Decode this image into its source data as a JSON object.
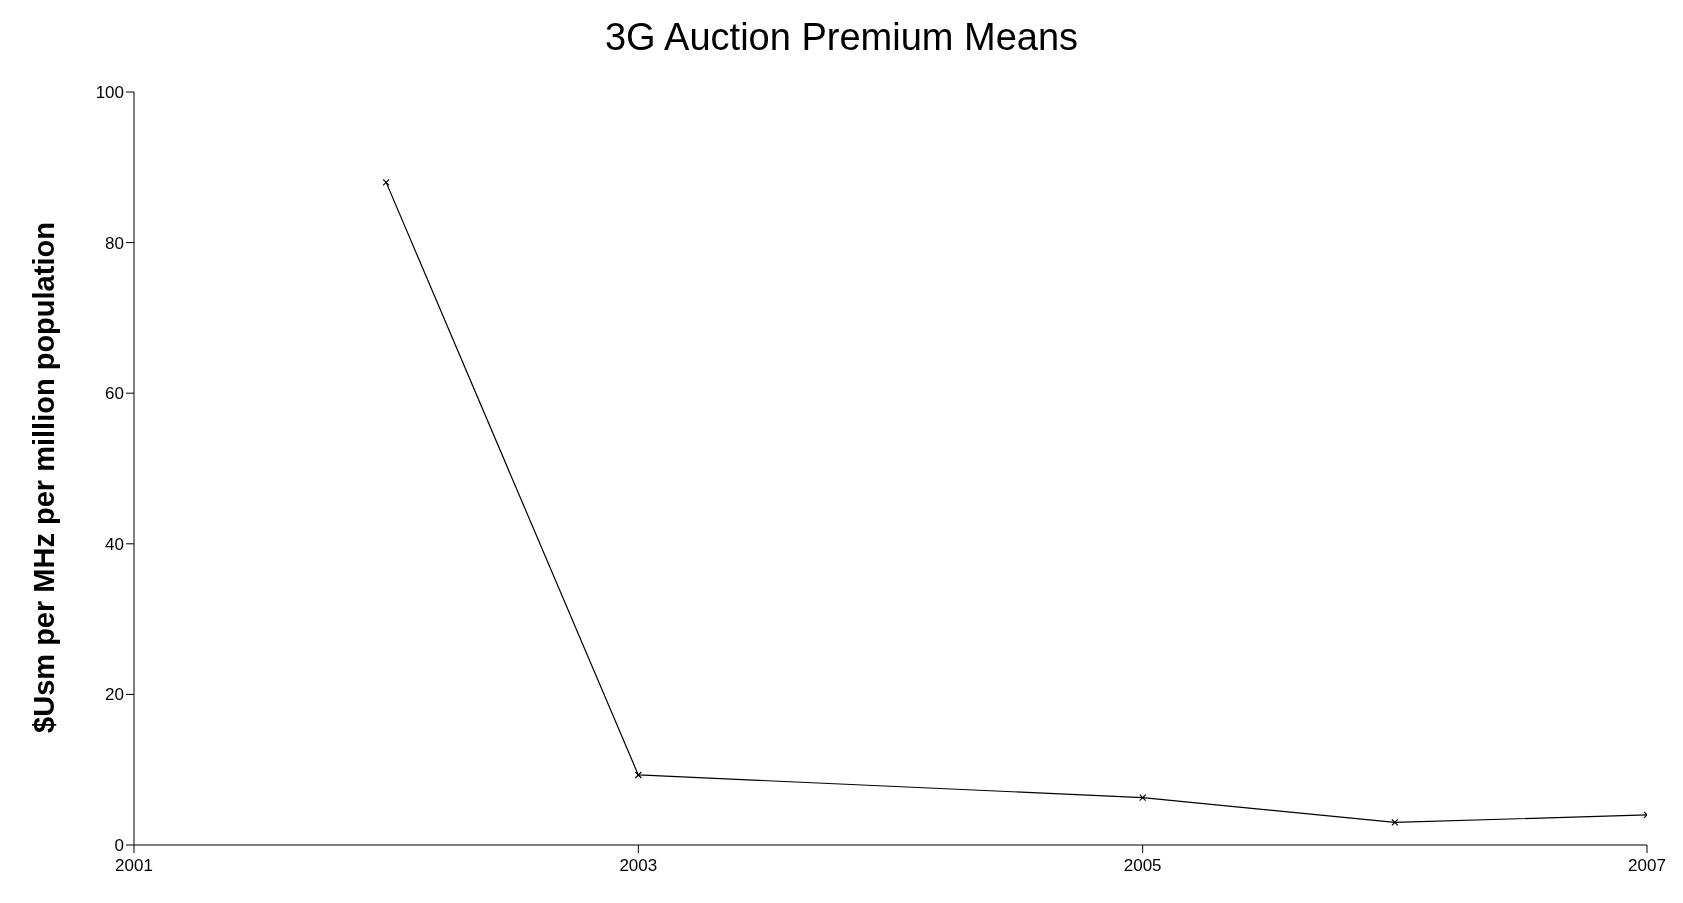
{
  "chart_data": {
    "type": "line",
    "title": "3G Auction Premium Means",
    "ylabel": "$Usm per MHz per million population",
    "x": [
      2002,
      2003,
      2005,
      2006,
      2007
    ],
    "series": [
      {
        "color": "#000000",
        "values": [
          88,
          9.3,
          6.3,
          3,
          4
        ]
      }
    ],
    "xlim": [
      2001,
      2007
    ],
    "xticks": [
      2001,
      2003,
      2005,
      2007
    ],
    "ylim": [
      0,
      100
    ],
    "yticks": [
      0,
      20,
      40,
      60,
      80,
      100
    ],
    "grid": false,
    "marker": "cross",
    "line_style": "solid"
  }
}
